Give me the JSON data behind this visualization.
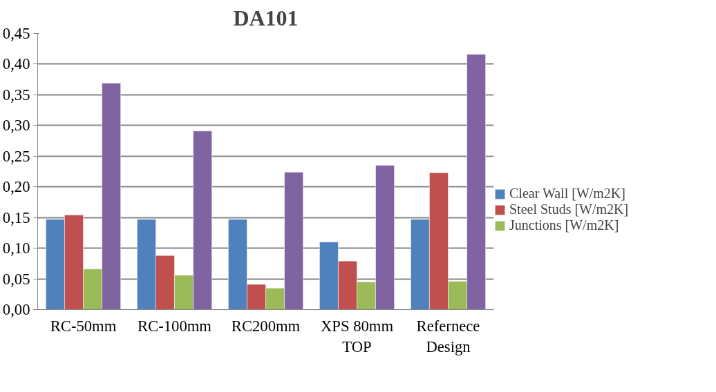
{
  "chart_data": {
    "type": "bar",
    "title": "DA101",
    "categories": [
      "RC-50mm",
      "RC-100mm",
      "RC200mm",
      "XPS 80mm TOP",
      "Refernece Design"
    ],
    "series": [
      {
        "name": "Clear Wall [W/m2K]",
        "color": "#4f81bd",
        "values": [
          0.147,
          0.147,
          0.147,
          0.11,
          0.147
        ]
      },
      {
        "name": "Steel Studs [W/m2K]",
        "color": "#c0504d",
        "values": [
          0.154,
          0.088,
          0.041,
          0.079,
          0.223
        ]
      },
      {
        "name": "Junctions [W/m2K]",
        "color": "#9bbb59",
        "values": [
          0.066,
          0.056,
          0.035,
          0.045,
          0.046
        ]
      },
      {
        "color": "#8064a2",
        "values": [
          0.369,
          0.291,
          0.224,
          0.235,
          0.416
        ]
      }
    ],
    "ylim": [
      0,
      0.45
    ],
    "yticks": [
      {
        "value": 0,
        "label": "0,00"
      },
      {
        "value": 0.05,
        "label": "0,05"
      },
      {
        "value": 0.1,
        "label": "0,10"
      },
      {
        "value": 0.15,
        "label": "0,15"
      },
      {
        "value": 0.2,
        "label": "0,20"
      },
      {
        "value": 0.25,
        "label": "0,25"
      },
      {
        "value": 0.3,
        "label": "0,30"
      },
      {
        "value": 0.35,
        "label": "0,35"
      },
      {
        "value": 0.4,
        "label": "0,40"
      },
      {
        "value": 0.45,
        "label": "0,45"
      }
    ],
    "grid": "y",
    "legend": "right"
  }
}
